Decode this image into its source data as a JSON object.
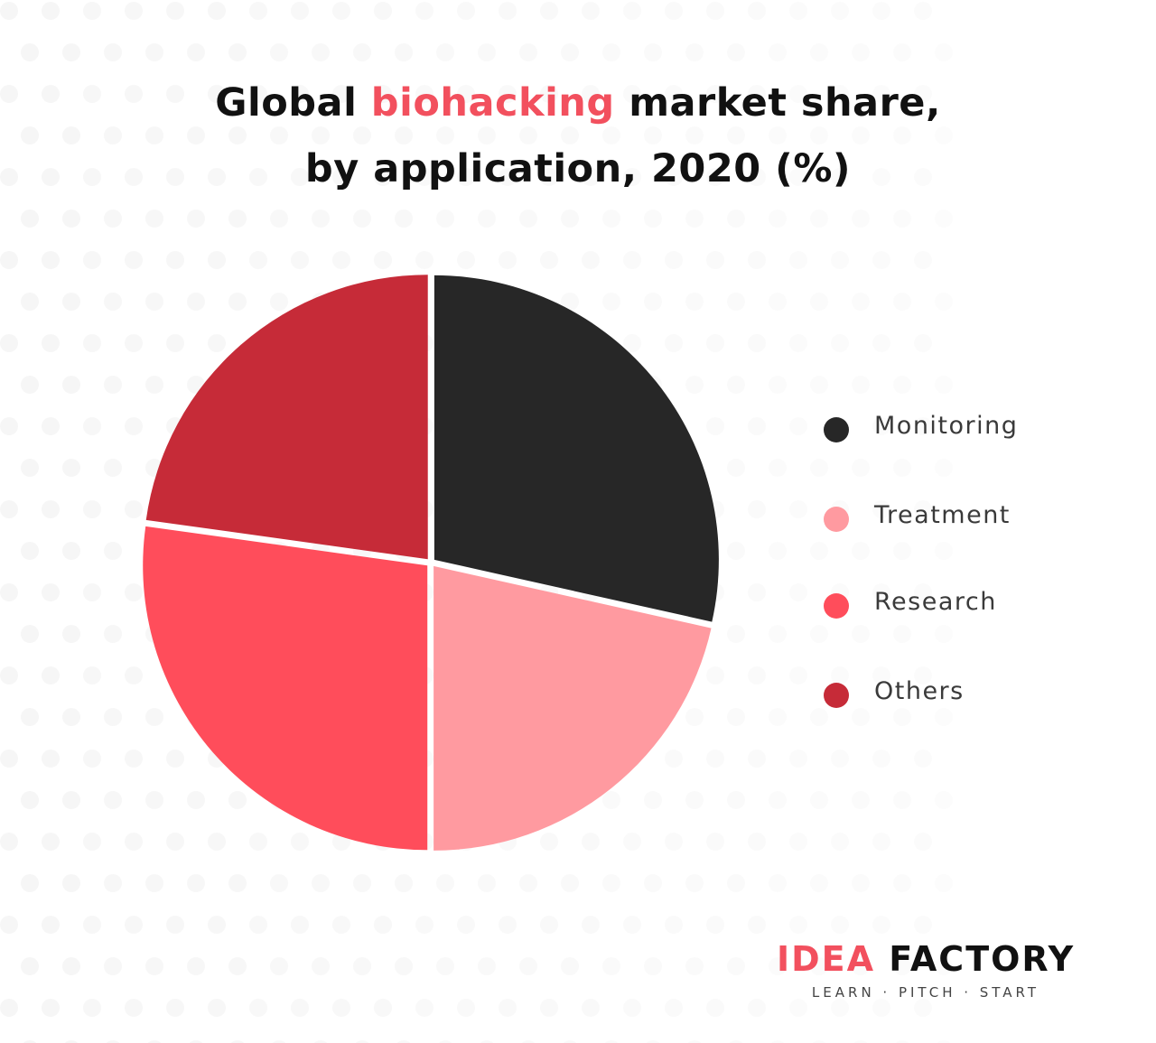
{
  "title": {
    "part1": "Global ",
    "highlight": "biohacking",
    "part2": " market share,",
    "line2": "by application, 2020 (%)"
  },
  "colors": {
    "highlight": "#f2505e",
    "monitoring": "#272727",
    "treatment": "#ff9aa0",
    "research": "#ff4d5b",
    "others": "#c62b38",
    "dots": "#f6f6f6"
  },
  "chart_data": {
    "type": "pie",
    "title": "Global biohacking market share, by application, 2020 (%)",
    "legend_placement": "right",
    "slices": [
      {
        "name": "Monitoring",
        "value": 28.5,
        "color": "#272727"
      },
      {
        "name": "Treatment",
        "value": 21.5,
        "color": "#ff9aa0"
      },
      {
        "name": "Research",
        "value": 27.2,
        "color": "#ff4d5b"
      },
      {
        "name": "Others",
        "value": 22.8,
        "color": "#c62b38"
      }
    ]
  },
  "legend": [
    {
      "label": "Monitoring",
      "color": "#272727"
    },
    {
      "label": "Treatment",
      "color": "#ff9aa0"
    },
    {
      "label": "Research",
      "color": "#ff4d5b"
    },
    {
      "label": "Others",
      "color": "#c62b38"
    }
  ],
  "logo": {
    "part1": "IDEA",
    "part2": "FACTORY",
    "tagline": "LEARN · PITCH · START"
  }
}
